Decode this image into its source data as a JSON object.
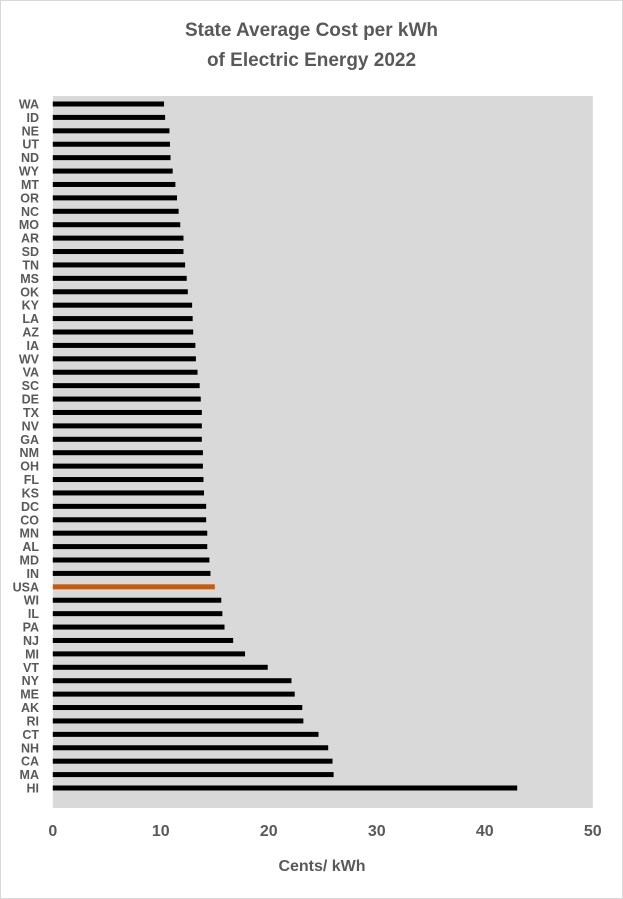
{
  "chart_data": {
    "type": "bar",
    "orientation": "horizontal",
    "title": "State Average Cost per kWh of Electric Energy 2022",
    "title_lines": [
      "State Average Cost per kWh",
      "of Electric Energy 2022"
    ],
    "xlabel": "Cents/ kWh",
    "ylabel": "",
    "xlim": [
      0,
      50
    ],
    "xticks": [
      0,
      10,
      20,
      30,
      40,
      50
    ],
    "grid": false,
    "plot_background": "#d9d9d9",
    "bar_color": "#000000",
    "highlight_color": "#c55a11",
    "highlight_category": "USA",
    "categories": [
      "WA",
      "ID",
      "NE",
      "UT",
      "ND",
      "WY",
      "MT",
      "OR",
      "NC",
      "MO",
      "AR",
      "SD",
      "TN",
      "MS",
      "OK",
      "KY",
      "LA",
      "AZ",
      "IA",
      "WV",
      "VA",
      "SC",
      "DE",
      "TX",
      "NV",
      "GA",
      "NM",
      "OH",
      "FL",
      "KS",
      "DC",
      "CO",
      "MN",
      "AL",
      "MD",
      "IN",
      "USA",
      "WI",
      "IL",
      "PA",
      "NJ",
      "MI",
      "VT",
      "NY",
      "ME",
      "AK",
      "RI",
      "CT",
      "NH",
      "CA",
      "MA",
      "HI"
    ],
    "values": [
      10.3,
      10.4,
      10.8,
      10.85,
      10.9,
      11.1,
      11.35,
      11.5,
      11.65,
      11.8,
      12.1,
      12.1,
      12.25,
      12.4,
      12.5,
      12.9,
      12.95,
      13.0,
      13.2,
      13.25,
      13.4,
      13.6,
      13.7,
      13.8,
      13.8,
      13.8,
      13.9,
      13.9,
      13.95,
      14.0,
      14.2,
      14.2,
      14.3,
      14.3,
      14.5,
      14.6,
      15.0,
      15.6,
      15.7,
      15.9,
      16.7,
      17.8,
      19.9,
      22.1,
      22.4,
      23.1,
      23.2,
      24.6,
      25.5,
      25.9,
      26.0,
      43.0
    ]
  }
}
